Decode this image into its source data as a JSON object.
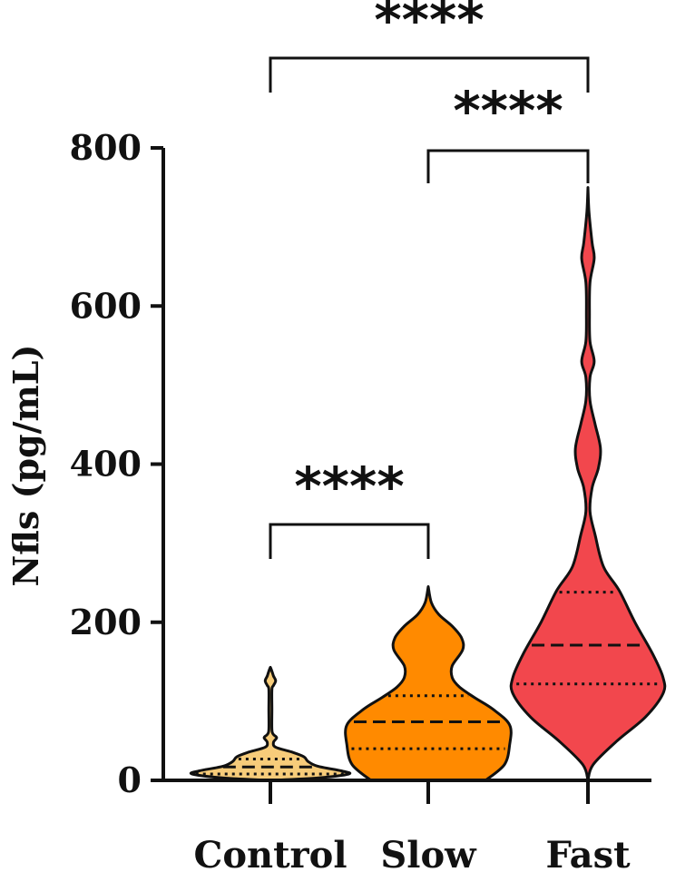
{
  "chart_data": {
    "type": "violin",
    "ylabel": "Nfls (pg/mL)",
    "ylim": [
      0,
      800
    ],
    "yticks": [
      "0",
      "200",
      "400",
      "600",
      "800"
    ],
    "grid": false,
    "categories": [
      "Control",
      "Slow",
      "Fast"
    ],
    "colors": [
      "#F7CC7A",
      "#FF8A00",
      "#F2474D"
    ],
    "series": [
      {
        "category": "Control",
        "min": 0,
        "max": 143,
        "q1": 8,
        "median": 17,
        "q3": 27,
        "density": [
          [
            0,
            0.02
          ],
          [
            3,
            0.45
          ],
          [
            8,
            0.75
          ],
          [
            12,
            0.68
          ],
          [
            18,
            0.45
          ],
          [
            24,
            0.36
          ],
          [
            30,
            0.32
          ],
          [
            36,
            0.2
          ],
          [
            42,
            0.05
          ],
          [
            48,
            0.03
          ],
          [
            54,
            0.06
          ],
          [
            58,
            0.03
          ],
          [
            64,
            0.015
          ],
          [
            90,
            0.015
          ],
          [
            115,
            0.015
          ],
          [
            120,
            0.03
          ],
          [
            126,
            0.05
          ],
          [
            132,
            0.03
          ],
          [
            138,
            0.015
          ],
          [
            143,
            0
          ]
        ]
      },
      {
        "category": "Slow",
        "min": 0,
        "max": 245,
        "q1": 40,
        "median": 74,
        "q3": 107,
        "density": [
          [
            0,
            0.55
          ],
          [
            20,
            0.73
          ],
          [
            45,
            0.78
          ],
          [
            70,
            0.78
          ],
          [
            90,
            0.62
          ],
          [
            105,
            0.44
          ],
          [
            118,
            0.3
          ],
          [
            130,
            0.23
          ],
          [
            145,
            0.23
          ],
          [
            165,
            0.33
          ],
          [
            180,
            0.32
          ],
          [
            195,
            0.23
          ],
          [
            210,
            0.1
          ],
          [
            225,
            0.03
          ],
          [
            245,
            0
          ]
        ]
      },
      {
        "category": "Fast",
        "min": 0,
        "max": 750,
        "q1": 122,
        "median": 171,
        "q3": 238,
        "density": [
          [
            0,
            0
          ],
          [
            20,
            0.05
          ],
          [
            50,
            0.28
          ],
          [
            80,
            0.55
          ],
          [
            110,
            0.72
          ],
          [
            130,
            0.72
          ],
          [
            160,
            0.62
          ],
          [
            200,
            0.45
          ],
          [
            240,
            0.3
          ],
          [
            270,
            0.15
          ],
          [
            310,
            0.07
          ],
          [
            340,
            0.02
          ],
          [
            370,
            0.04
          ],
          [
            395,
            0.1
          ],
          [
            420,
            0.12
          ],
          [
            450,
            0.07
          ],
          [
            480,
            0.02
          ],
          [
            510,
            0.02
          ],
          [
            530,
            0.06
          ],
          [
            555,
            0.02
          ],
          [
            590,
            0.015
          ],
          [
            630,
            0.02
          ],
          [
            660,
            0.06
          ],
          [
            680,
            0.04
          ],
          [
            720,
            0.01
          ],
          [
            750,
            0
          ]
        ]
      }
    ],
    "comparisons": [
      {
        "from": "Control",
        "to": "Slow",
        "label": "****"
      },
      {
        "from": "Slow",
        "to": "Fast",
        "label": "****"
      },
      {
        "from": "Control",
        "to": "Fast",
        "label": "****"
      }
    ]
  }
}
